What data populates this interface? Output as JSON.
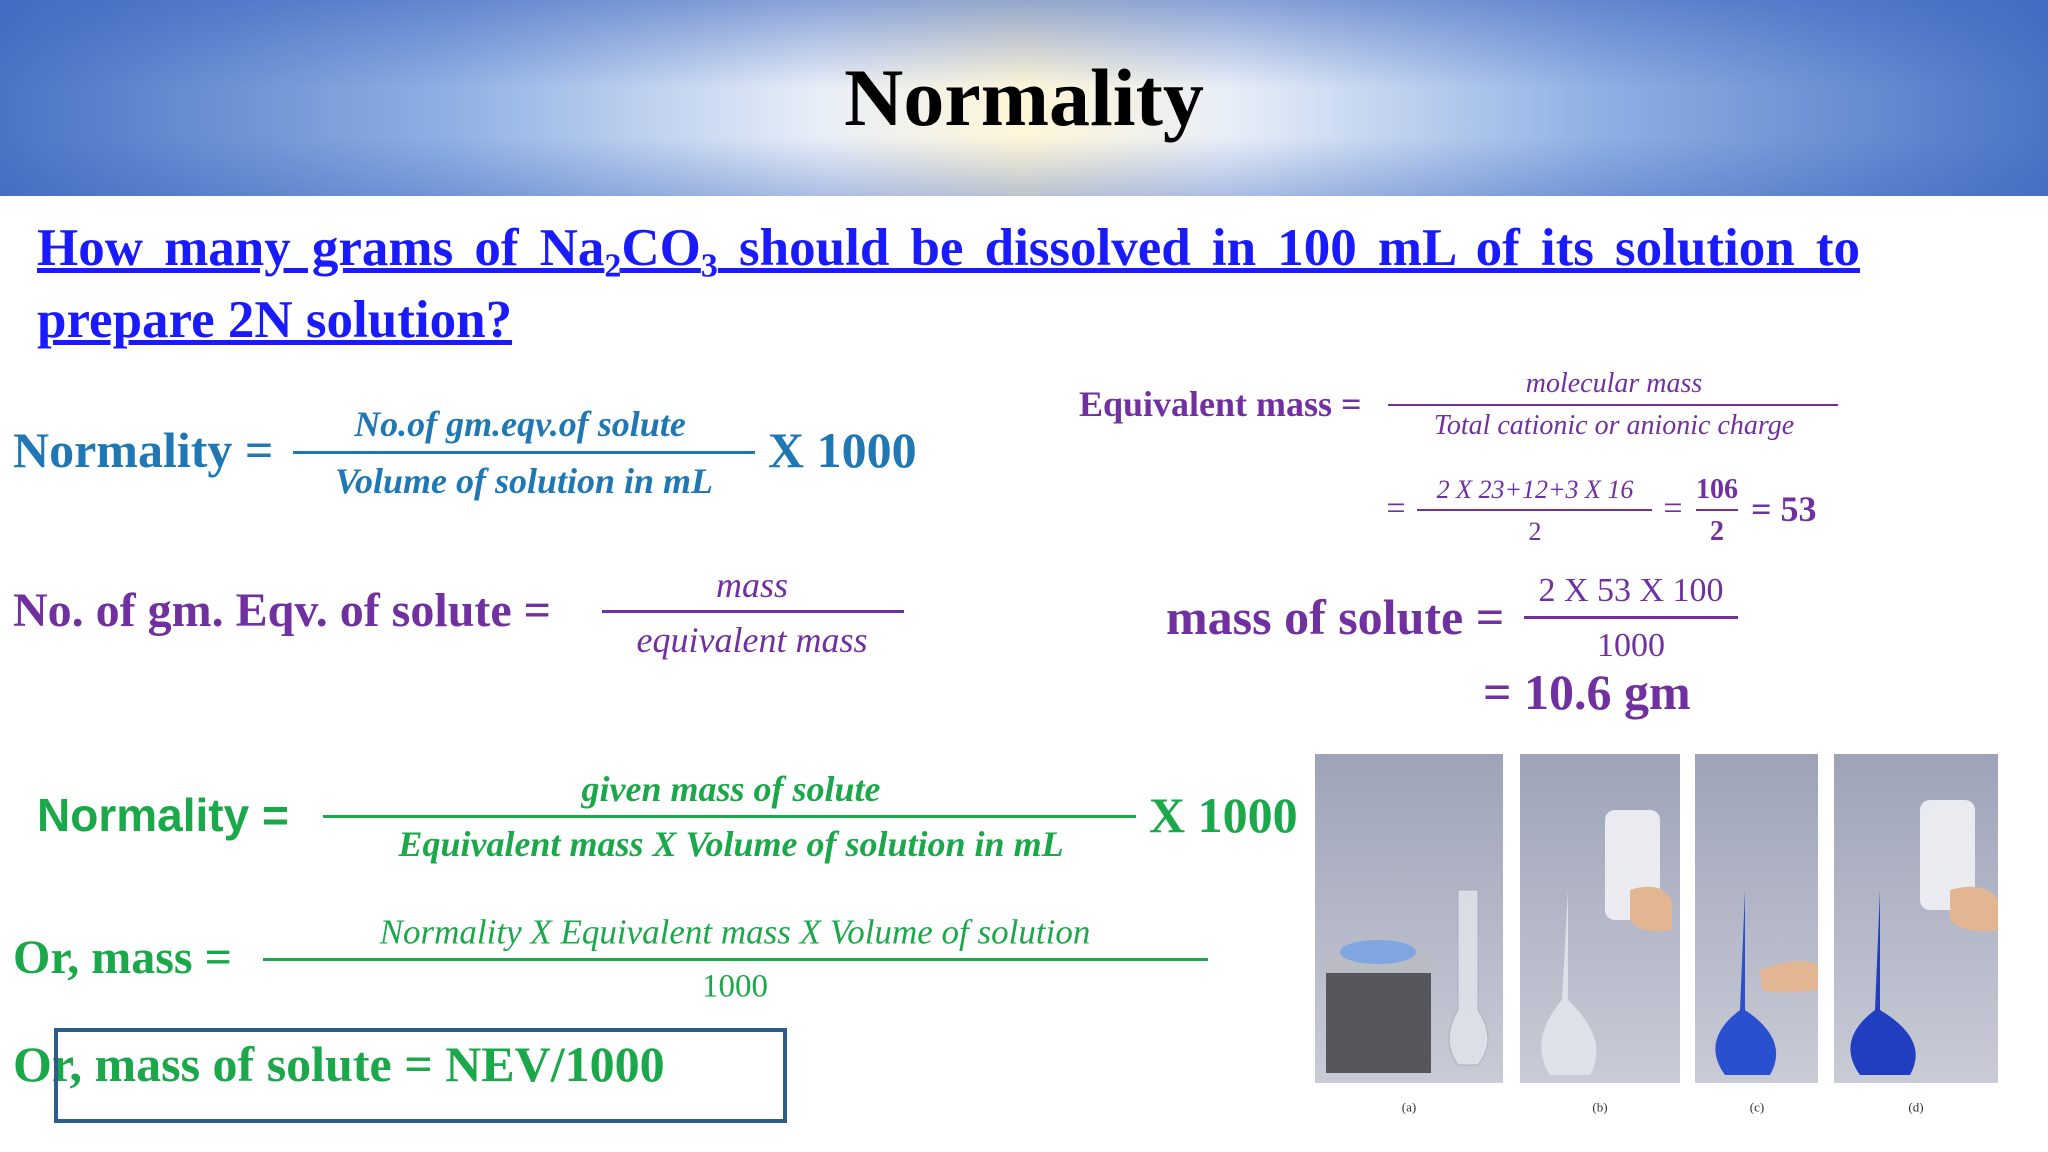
{
  "header": {
    "title": "Normality"
  },
  "question": {
    "text1": "How many grams of Na",
    "sub1": "2",
    "text2": "CO",
    "sub2": "3",
    "text3": " should be dissolved in 100 mL of its solution to prepare 2N solution?"
  },
  "formula1": {
    "lhs": "Normality =",
    "numerator": "No.of gm.eqv.of solute",
    "denominator": "Volume of solution in mL",
    "suffix": "X 1000"
  },
  "formula2": {
    "lhs": "No. of gm. Eqv. of solute =",
    "numerator": "mass",
    "denominator": "equivalent mass"
  },
  "equivalent": {
    "lhs": "Equivalent mass =",
    "numerator": "molecular mass",
    "denominator": "Total cationic or anionic charge",
    "eq1": "=",
    "numerator2": "2 X 23+12+3 X 16",
    "denominator2": "2",
    "eq2": "=",
    "numerator3": "106",
    "denominator3": "2",
    "result": "= 53"
  },
  "mass_of_solute": {
    "lhs": "mass of solute =",
    "numerator": "2 X 53 X 100",
    "denominator": "1000",
    "result": "= 10.6 gm"
  },
  "formula3": {
    "lhs": "Normality =",
    "numerator": "given mass  of solute",
    "denominator": "Equivalent mass X Volume of solution in mL",
    "suffix": "X 1000"
  },
  "formula4": {
    "lhs": "Or, mass =",
    "numerator": "Normality X Equivalent mass X Volume of solution",
    "denominator": "1000"
  },
  "formula5": {
    "text": "Or, mass of solute  = NEV/1000"
  },
  "figure": {
    "captions": [
      "(a)",
      "(b)",
      "(c)",
      "(d)"
    ]
  }
}
